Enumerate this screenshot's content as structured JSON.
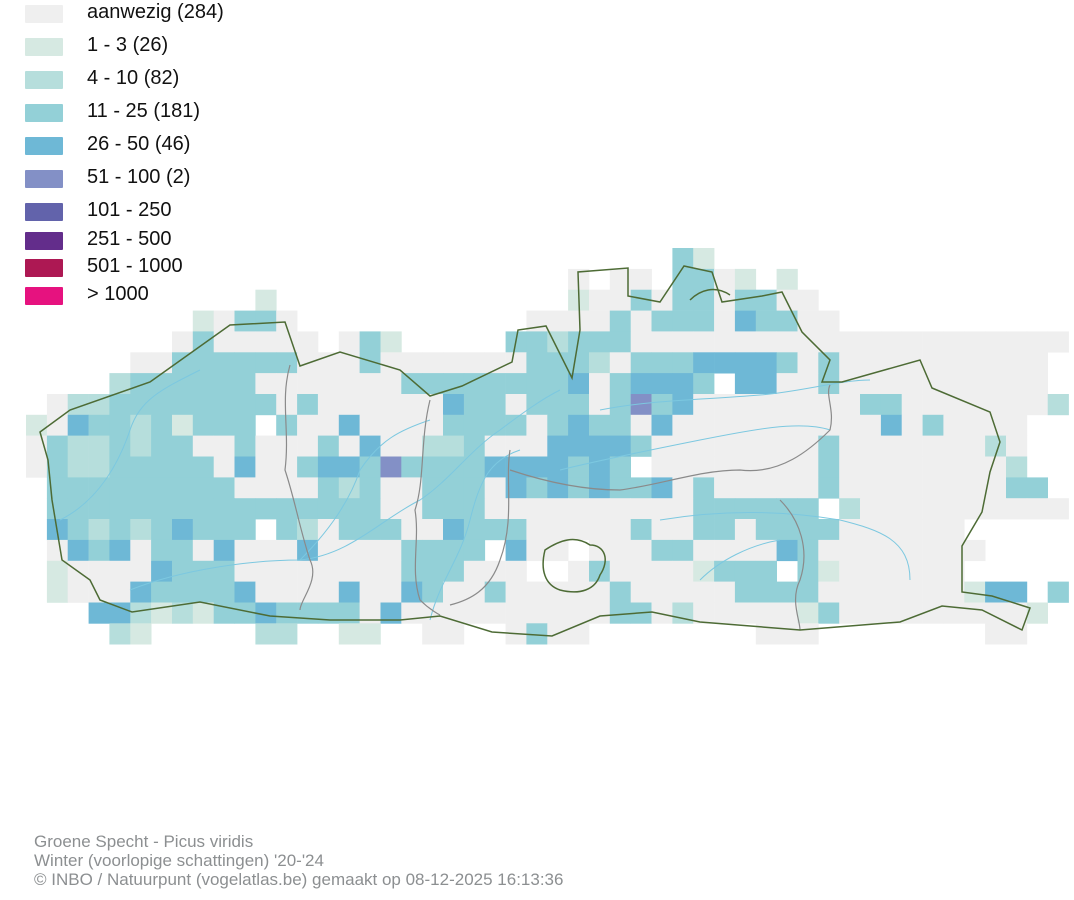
{
  "legend": [
    {
      "label": "aanwezig (284)",
      "color": "#efefef"
    },
    {
      "label": "1 - 3 (26)",
      "color": "#d6e9e2"
    },
    {
      "label": "4 - 10 (82)",
      "color": "#b6dedc"
    },
    {
      "label": "11 - 25 (181)",
      "color": "#93d0d7"
    },
    {
      "label": "26 - 50 (46)",
      "color": "#6eb8d6"
    },
    {
      "label": "51 - 100 (2)",
      "color": "#8390c6"
    },
    {
      "label": "101 - 250",
      "color": "#6263ab"
    },
    {
      "label": "251 - 500",
      "color": "#632d8b"
    },
    {
      "label": "501 - 1000",
      "color": "#ad1853"
    },
    {
      "label": "> 1000",
      "color": "#e6127f"
    }
  ],
  "map": {
    "border_color": "#4d6b35",
    "province_border_color": "#8a8a8a",
    "river_color": "#7cc8e0"
  },
  "footer": {
    "species": "Groene Specht - Picus viridis",
    "period": "Winter (voorlopige schattingen) '20-'24",
    "credit": "© INBO / Natuurpunt (vogelatlas.be) gemaakt op 08-12-2025 16:13:36"
  }
}
